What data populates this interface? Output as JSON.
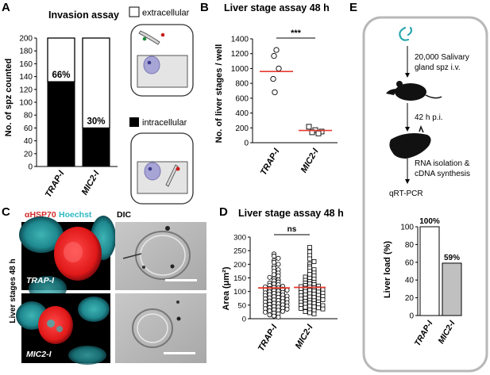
{
  "panels": {
    "A": "A",
    "B": "B",
    "C": "C",
    "D": "D",
    "E": "E"
  },
  "panel_a": {
    "title": "Invasion assay",
    "legend_extracellular": "extracellular",
    "legend_intracellular": "intracellular",
    "ylabel": "No. of spz counted",
    "percent_labels": [
      "66%",
      "30%"
    ]
  },
  "panel_b": {
    "title": "Liver stage assay 48 h",
    "ylabel": "No. of liver stages / well",
    "significance": "***"
  },
  "panel_c": {
    "stain_1": "αHSP70",
    "stain_2": "Hoechst",
    "dic": "DIC",
    "side_label": "Liver stages 48 h",
    "row_labels": [
      "TRAP-I",
      "MIC2-I"
    ]
  },
  "panel_d": {
    "title": "Liver stage assay  48 h",
    "ylabel": "Area (μm²)",
    "significance": "ns"
  },
  "panel_e": {
    "step1": [
      "20,000 Salivary",
      "gland spz i.v."
    ],
    "step2": "42 h p.i.",
    "step3": [
      "RNA isolation &",
      "cDNA synthesis"
    ],
    "step4": "qRT-PCR",
    "ylabel": "Liver load (%)",
    "percent_labels": [
      "100%",
      "59%"
    ]
  },
  "chart_data": [
    {
      "type": "bar",
      "title": "Invasion assay",
      "ylabel": "No. of spz counted",
      "categories": [
        "TRAP-I",
        "MIC2-I"
      ],
      "series": [
        {
          "name": "intracellular",
          "values": [
            132,
            60
          ]
        },
        {
          "name": "extracellular",
          "values": [
            68,
            140
          ]
        }
      ],
      "stacked": true,
      "ylim": [
        0,
        200
      ],
      "yticks": [
        0,
        20,
        40,
        60,
        80,
        100,
        120,
        140,
        160,
        180,
        200
      ],
      "annotations": [
        "66%",
        "30%"
      ],
      "colors": {
        "intracellular": "#000000",
        "extracellular": "#ffffff"
      }
    },
    {
      "type": "scatter",
      "title": "Liver stage assay 48 h",
      "ylabel": "No. of liver stages / well",
      "categories": [
        "TRAP-I",
        "MIC2-I"
      ],
      "series": [
        {
          "name": "TRAP-I",
          "marker": "circle",
          "values": [
            1250,
            1170,
            1000,
            860,
            680
          ],
          "mean": 960
        },
        {
          "name": "MIC2-I",
          "marker": "square",
          "values": [
            215,
            170,
            150,
            140,
            125
          ],
          "mean": 165
        }
      ],
      "ylim": [
        0,
        1400
      ],
      "yticks": [
        0,
        200,
        400,
        600,
        800,
        1000,
        1200,
        1400
      ],
      "annotations": [
        "***"
      ],
      "mean_line_color": "#e8392d"
    },
    {
      "type": "scatter",
      "title": "Liver stage assay  48 h",
      "ylabel": "Area (μm²)",
      "categories": [
        "TRAP-I",
        "MIC2-I"
      ],
      "series": [
        {
          "name": "TRAP-I",
          "marker": "circle",
          "mean": 113,
          "values": [
            238,
            230,
            222,
            214,
            207,
            200,
            193,
            186,
            180,
            174,
            168,
            162,
            157,
            152,
            147,
            143,
            139,
            135,
            131,
            128,
            125,
            122,
            119,
            117,
            115,
            113,
            111,
            109,
            107,
            105,
            103,
            101,
            99,
            97,
            95,
            93,
            91,
            89,
            87,
            85,
            83,
            81,
            79,
            77,
            75,
            73,
            71,
            69,
            67,
            65,
            63,
            61,
            59,
            57,
            55,
            53,
            51,
            49,
            47,
            45,
            43,
            41,
            39,
            37,
            35,
            33,
            31,
            29,
            27,
            24,
            21,
            18,
            14,
            10,
            6
          ]
        },
        {
          "name": "MIC2-I",
          "marker": "square",
          "mean": 115,
          "values": [
            262,
            246,
            232,
            220,
            210,
            201,
            193,
            186,
            180,
            174,
            168,
            163,
            158,
            153,
            149,
            145,
            141,
            137,
            134,
            131,
            128,
            125,
            122,
            120,
            118,
            116,
            114,
            112,
            110,
            108,
            106,
            104,
            102,
            100,
            98,
            96,
            94,
            92,
            90,
            88,
            86,
            84,
            82,
            80,
            78,
            76,
            74,
            72,
            70,
            68,
            66,
            64,
            62,
            60,
            58,
            56,
            54,
            52,
            50,
            48,
            46,
            44,
            42,
            40,
            38,
            36,
            33,
            30,
            26,
            22,
            18
          ]
        }
      ],
      "ylim": [
        0,
        300
      ],
      "yticks": [
        0,
        50,
        100,
        150,
        200,
        250,
        300
      ],
      "annotations": [
        "ns"
      ],
      "mean_line_color": "#e8392d"
    },
    {
      "type": "bar",
      "ylabel": "Liver load (%)",
      "categories": [
        "TRAP-I",
        "MIC2-I"
      ],
      "values": [
        100,
        59
      ],
      "ylim": [
        0,
        100
      ],
      "yticks": [
        0,
        20,
        40,
        60,
        80,
        100
      ],
      "annotations": [
        "100%",
        "59%"
      ],
      "colors": {
        "TRAP-I": "#ffffff",
        "MIC2-I": "#c0c0c0"
      }
    }
  ]
}
